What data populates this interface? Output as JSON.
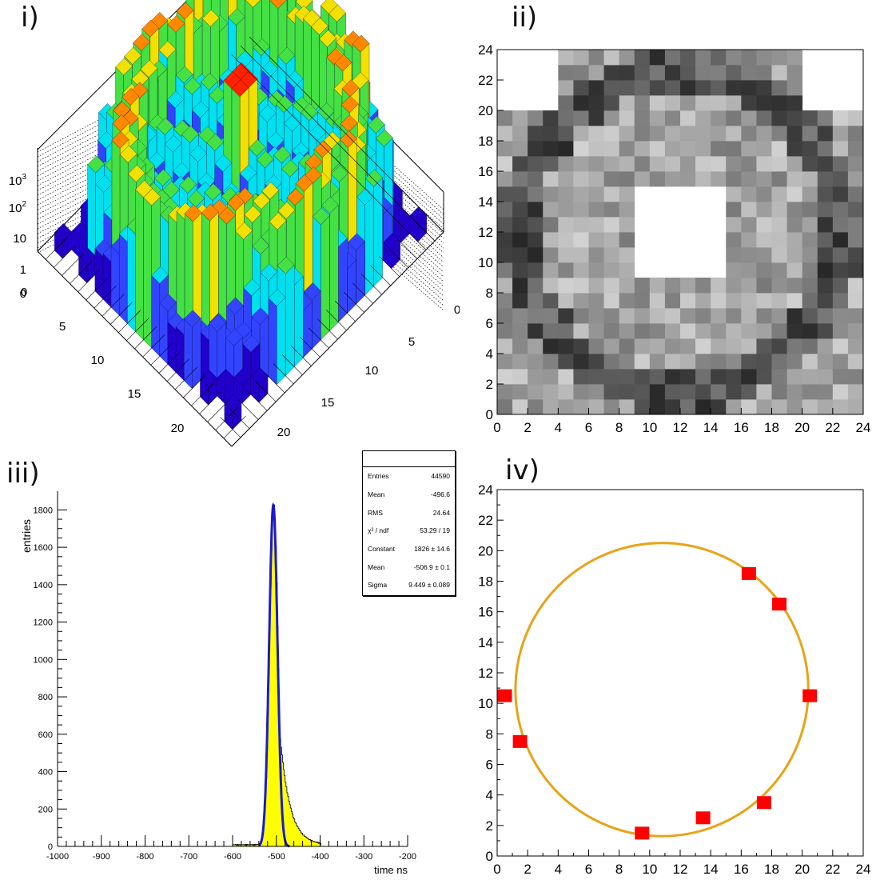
{
  "panels": {
    "p1": {
      "label": "i)"
    },
    "p2": {
      "label": "ii)"
    },
    "p3": {
      "label": "iii)"
    },
    "p4": {
      "label": "iv)"
    }
  },
  "chart_data": [
    {
      "type": "lego3d",
      "panel_label": "i)",
      "z_scale": "log",
      "z_ticks": [
        "0",
        "1",
        "10",
        "10^2",
        "10^3"
      ],
      "x_ticks": [
        "0",
        "5",
        "10",
        "15",
        "20"
      ],
      "y_ticks": [
        "0",
        "5",
        "10",
        "15",
        "20"
      ],
      "colors": {
        "low": "#2200cc",
        "mid_low": "#00e5e5",
        "mid": "#33dd33",
        "mid_high": "#f2e000",
        "high": "#ff2200"
      }
    },
    {
      "type": "heatmap",
      "panel_label": "ii)",
      "xlim": [
        0,
        24
      ],
      "ylim": [
        0,
        24
      ],
      "x_ticks": [
        "0",
        "2",
        "4",
        "6",
        "8",
        "10",
        "12",
        "14",
        "16",
        "18",
        "20",
        "22",
        "24"
      ],
      "y_ticks": [
        "0",
        "2",
        "4",
        "6",
        "8",
        "10",
        "12",
        "14",
        "16",
        "18",
        "20",
        "22",
        "24"
      ],
      "colormap": "grayscale"
    },
    {
      "type": "histogram",
      "panel_label": "iii)",
      "xlabel": "time ns",
      "ylabel": "entries",
      "xlim": [
        -1000,
        -200
      ],
      "ylim": [
        0,
        1900
      ],
      "x_ticks": [
        "-1000",
        "-900",
        "-800",
        "-700",
        "-600",
        "-500",
        "-400",
        "-300",
        "-200"
      ],
      "y_ticks": [
        "0",
        "200",
        "400",
        "600",
        "800",
        "1000",
        "1200",
        "1400",
        "1600",
        "1800"
      ],
      "fill_color": "#ffff00",
      "fit_color": "#1a1ad0",
      "fit": {
        "constant": 1826,
        "mean": -506.9,
        "sigma": 9.449
      },
      "stats": [
        {
          "name": "Entries",
          "value": "44590"
        },
        {
          "name": "Mean",
          "value": "-496.6"
        },
        {
          "name": "RMS",
          "value": "24.64"
        },
        {
          "name": "χ² / ndf",
          "value": "53.29 / 19"
        },
        {
          "name": "Constant",
          "value": "1826 ± 14.6"
        },
        {
          "name": "Mean",
          "value": "-506.9 ± 0.1"
        },
        {
          "name": "Sigma",
          "value": "9.449 ± 0.089"
        }
      ]
    },
    {
      "type": "scatter",
      "panel_label": "iv)",
      "xlim": [
        0,
        24
      ],
      "ylim": [
        0,
        24
      ],
      "x_ticks": [
        "0",
        "2",
        "4",
        "6",
        "8",
        "10",
        "12",
        "14",
        "16",
        "18",
        "20",
        "22",
        "24"
      ],
      "y_ticks": [
        "0",
        "2",
        "4",
        "6",
        "8",
        "10",
        "12",
        "14",
        "16",
        "18",
        "20",
        "22",
        "24"
      ],
      "points": [
        [
          0.5,
          10.5
        ],
        [
          1.5,
          7.5
        ],
        [
          9.5,
          1.5
        ],
        [
          13.5,
          2.5
        ],
        [
          16.5,
          18.5
        ],
        [
          17.5,
          3.5
        ],
        [
          18.5,
          16.5
        ],
        [
          20.5,
          10.5
        ]
      ],
      "circle": {
        "cx": 10.8,
        "cy": 10.9,
        "r": 9.6
      },
      "marker_color": "#ff0000",
      "circle_color": "#e8a317"
    }
  ]
}
